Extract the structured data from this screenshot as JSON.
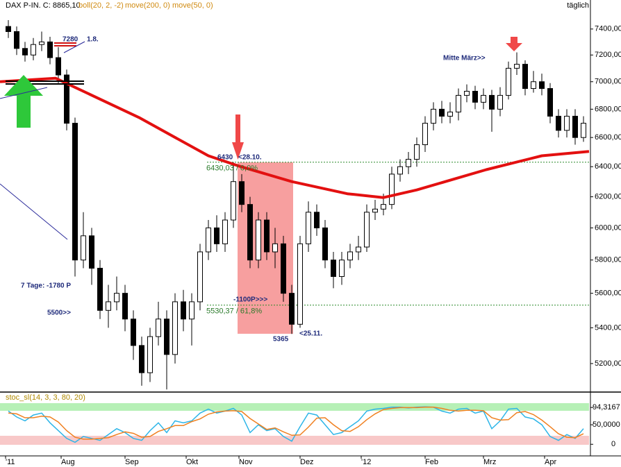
{
  "chart_data": [
    {
      "type": "candlestick",
      "title": "DAX P-IN. C: 8865,10",
      "indicators": [
        "boll(20, 2, -2)",
        "move(50, 0)"
      ],
      "period": "täglich",
      "log_scale": true,
      "ylim": [
        5046,
        7630
      ],
      "yticks": [
        {
          "value": 7400,
          "label": "7400,00"
        },
        {
          "value": 7200,
          "label": "7200,00"
        },
        {
          "value": 7000,
          "label": "7000,00"
        },
        {
          "value": 6800,
          "label": "6800,00"
        },
        {
          "value": 6600,
          "label": "6600,00"
        },
        {
          "value": 6400,
          "label": "6400,00"
        },
        {
          "value": 6200,
          "label": "6200,00"
        },
        {
          "value": 6000,
          "label": "6000,00"
        },
        {
          "value": 5800,
          "label": "5800,00"
        },
        {
          "value": 5600,
          "label": "5600,00"
        },
        {
          "value": 5400,
          "label": "5400,00"
        },
        {
          "value": 5200,
          "label": "5200,00"
        }
      ],
      "xlim": [
        0,
        212.5
      ],
      "xticks": [
        {
          "value": 2,
          "label": "'11"
        },
        {
          "value": 22,
          "label": "Aug"
        },
        {
          "value": 45,
          "label": "Sep"
        },
        {
          "value": 67,
          "label": "Okt"
        },
        {
          "value": 86,
          "label": "Nov"
        },
        {
          "value": 108,
          "label": "Dez"
        },
        {
          "value": 130,
          "label": "'12"
        },
        {
          "value": 153,
          "label": "Feb"
        },
        {
          "value": 174,
          "label": "Mrz"
        },
        {
          "value": 196,
          "label": "Apr"
        }
      ],
      "x": [
        3,
        6,
        9,
        12,
        15,
        18,
        21,
        24,
        27,
        30,
        33,
        36,
        39,
        42,
        45,
        48,
        51,
        54,
        57,
        60,
        63,
        66,
        69,
        72,
        75,
        78,
        81,
        84,
        87,
        90,
        93,
        96,
        99,
        102,
        105,
        108,
        111,
        114,
        117,
        120,
        123,
        126,
        129,
        132,
        135,
        138,
        141,
        144,
        147,
        150,
        153,
        156,
        159,
        162,
        165,
        168,
        171,
        174,
        177,
        180,
        183,
        186,
        189,
        192,
        195,
        198,
        201,
        204,
        207,
        210
      ],
      "open": [
        7420,
        7380,
        7250,
        7200,
        7280,
        7300,
        7180,
        7050,
        6700,
        5800,
        5950,
        5750,
        5500,
        5550,
        5600,
        5450,
        5300,
        5150,
        5350,
        5450,
        5250,
        5550,
        5450,
        5550,
        5850,
        6000,
        5900,
        6050,
        6300,
        6150,
        5800,
        6050,
        5850,
        5900,
        5600,
        5420,
        5900,
        6100,
        6000,
        5800,
        5700,
        5800,
        5850,
        5880,
        6100,
        6120,
        6150,
        6350,
        6400,
        6450,
        6550,
        6700,
        6800,
        6750,
        6780,
        6900,
        6930,
        6850,
        6900,
        6800,
        6900,
        7100,
        7130,
        6950,
        7000,
        6950,
        6750,
        6650,
        6750,
        6600
      ],
      "high": [
        7470,
        7420,
        7300,
        7330,
        7380,
        7340,
        7260,
        7090,
        6740,
        6100,
        6000,
        5800,
        5650,
        5700,
        5650,
        5500,
        5350,
        5400,
        5550,
        5500,
        5600,
        5620,
        5600,
        5900,
        6050,
        6080,
        6100,
        6430,
        6350,
        6200,
        6100,
        6100,
        6000,
        5950,
        5650,
        5950,
        6170,
        6150,
        6050,
        5850,
        5850,
        5900,
        5950,
        6150,
        6180,
        6220,
        6400,
        6450,
        6500,
        6600,
        6750,
        6850,
        6860,
        6850,
        6950,
        6980,
        6970,
        6950,
        6940,
        6960,
        7150,
        7220,
        7160,
        7080,
        7060,
        6990,
        6800,
        6800,
        6800,
        6750
      ],
      "low": [
        7330,
        7200,
        7150,
        7160,
        7230,
        7130,
        6990,
        6650,
        5700,
        5750,
        5650,
        5450,
        5400,
        5500,
        5380,
        5220,
        5080,
        5100,
        5300,
        5060,
        5200,
        5380,
        5300,
        5500,
        5800,
        5850,
        5850,
        6000,
        6100,
        5750,
        5750,
        5800,
        5750,
        5550,
        5365,
        5400,
        5850,
        5950,
        5750,
        5630,
        5650,
        5750,
        5800,
        5850,
        6050,
        6080,
        6120,
        6300,
        6350,
        6400,
        6500,
        6650,
        6700,
        6700,
        6720,
        6850,
        6800,
        6800,
        6640,
        6750,
        6870,
        7050,
        6900,
        6920,
        6900,
        6700,
        6600,
        6600,
        6550,
        6570
      ],
      "close": [
        7380,
        7250,
        7200,
        7280,
        7300,
        7180,
        7050,
        6700,
        5800,
        5950,
        5750,
        5500,
        5550,
        5600,
        5450,
        5300,
        5150,
        5350,
        5450,
        5250,
        5550,
        5450,
        5550,
        5850,
        6000,
        5900,
        6050,
        6300,
        6150,
        5800,
        6050,
        5850,
        5900,
        5600,
        5420,
        5900,
        6100,
        6000,
        5800,
        5700,
        5800,
        5850,
        5880,
        6100,
        6120,
        6150,
        6350,
        6400,
        6450,
        6550,
        6700,
        6800,
        6750,
        6780,
        6900,
        6930,
        6850,
        6900,
        6800,
        6900,
        7100,
        7130,
        6950,
        7000,
        6950,
        6750,
        6650,
        6750,
        6600,
        6700
      ],
      "series": [
        {
          "name": "move(200, 0)",
          "color": "#e31010",
          "x": [
            0,
            20,
            50,
            75,
            86,
            105,
            125,
            138,
            150,
            175,
            195,
            212
          ],
          "values": [
            7000,
            7026,
            6741,
            6474,
            6404,
            6300,
            6220,
            6195,
            6245,
            6380,
            6474,
            6504
          ]
        }
      ],
      "fib_levels": [
        {
          "value": 6430.03,
          "label": "6430,03 / 0,0%"
        },
        {
          "value": 5530.37,
          "label": "5530,37 / 61,8%"
        }
      ],
      "annotations": [
        "7280",
        "1.8.",
        "7 Tage: -1780 P",
        "5500>>",
        "6430",
        "<28.10.",
        "-1100P>>>",
        "5365",
        "<25.11.",
        "Mitte März>>"
      ]
    },
    {
      "type": "line",
      "title": "stoc_sl(14, 3, 3, 80, 20)",
      "ylim": [
        -28,
        132
      ],
      "yticks": [
        {
          "value": 94.3167,
          "label": "94,3167"
        },
        {
          "value": 50,
          "label": "50,0000"
        },
        0
      ],
      "xlim": [
        0,
        212.5
      ],
      "x": [
        3,
        6,
        9,
        12,
        15,
        18,
        21,
        24,
        27,
        30,
        33,
        36,
        39,
        42,
        45,
        48,
        51,
        54,
        57,
        60,
        63,
        66,
        69,
        72,
        75,
        78,
        81,
        84,
        87,
        90,
        93,
        96,
        99,
        102,
        105,
        108,
        111,
        114,
        117,
        120,
        123,
        126,
        129,
        132,
        135,
        138,
        141,
        144,
        147,
        150,
        153,
        156,
        159,
        162,
        165,
        168,
        171,
        174,
        177,
        180,
        183,
        186,
        189,
        192,
        195,
        198,
        201,
        204,
        207,
        210
      ],
      "series": [
        {
          "color": "#2cb5e8",
          "values": [
            85,
            70,
            60,
            75,
            80,
            55,
            35,
            15,
            5,
            20,
            15,
            10,
            25,
            40,
            30,
            15,
            10,
            35,
            55,
            30,
            60,
            55,
            60,
            80,
            90,
            80,
            85,
            92,
            75,
            30,
            50,
            35,
            40,
            20,
            8,
            45,
            80,
            75,
            50,
            25,
            30,
            45,
            60,
            85,
            90,
            92,
            95,
            95,
            93,
            95,
            96,
            95,
            85,
            80,
            90,
            92,
            80,
            85,
            40,
            60,
            90,
            92,
            70,
            65,
            50,
            20,
            10,
            25,
            15,
            40
          ]
        },
        {
          "color": "#f08020",
          "values": [
            80,
            78,
            68,
            68,
            72,
            70,
            57,
            35,
            18,
            13,
            13,
            15,
            17,
            25,
            32,
            28,
            18,
            20,
            33,
            40,
            48,
            48,
            58,
            65,
            77,
            83,
            85,
            86,
            84,
            66,
            52,
            38,
            42,
            32,
            23,
            24,
            44,
            67,
            68,
            50,
            35,
            33,
            45,
            63,
            78,
            89,
            92,
            94,
            94,
            94,
            95,
            95,
            92,
            87,
            85,
            87,
            87,
            86,
            68,
            62,
            63,
            81,
            84,
            76,
            62,
            45,
            27,
            18,
            17,
            27
          ]
        }
      ]
    }
  ]
}
